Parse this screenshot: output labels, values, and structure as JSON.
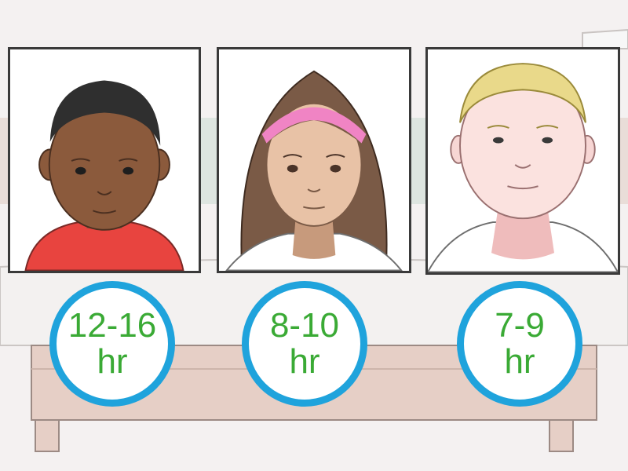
{
  "colors": {
    "badge_ring": "#1fa3dc",
    "badge_text": "#3aaa35",
    "wall": "#f4f1f1",
    "bed_frame": "#e6cfc6",
    "mattress": "#f3f1f0"
  },
  "portraits": [
    {
      "subject": "baby",
      "hours": {
        "range": "12-16",
        "unit": "hr"
      }
    },
    {
      "subject": "teen",
      "hours": {
        "range": "8-10",
        "unit": "hr"
      }
    },
    {
      "subject": "adult",
      "hours": {
        "range": "7-9",
        "unit": "hr"
      }
    }
  ]
}
